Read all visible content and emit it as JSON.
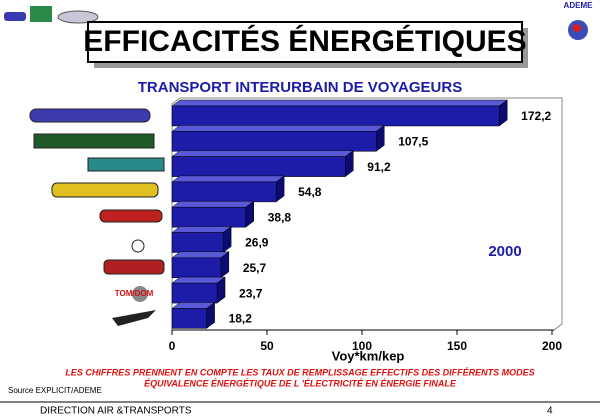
{
  "chart_data": {
    "type": "bar",
    "orientation": "horizontal",
    "title": "EFFICACITÉS ÉNERGÉTIQUES",
    "subtitle": "TRANSPORT INTERURBAIN DE VOYAGEURS",
    "categories": [
      null,
      null,
      null,
      null,
      null,
      null,
      null,
      null,
      null
    ],
    "values": [
      172.2,
      107.5,
      91.2,
      54.8,
      38.8,
      26.9,
      25.7,
      23.7,
      18.2
    ],
    "value_labels": [
      "172,2",
      "107,5",
      "91,2",
      "54,8",
      "38,8",
      "26,9",
      "25,7",
      "23,7",
      "18,2"
    ],
    "color": "#1c1ca8",
    "xlim": [
      0,
      200
    ],
    "xticks": [
      0,
      50,
      100,
      150,
      200
    ],
    "xlabel": "Voy*km/kep",
    "annotations": [
      "2000",
      "TOM/DOM"
    ],
    "footnotes": [
      "LES CHIFFRES PRENNENT EN COMPTE LES TAUX DE REMPLISSAGE EFFECTIFS DES DIFFÉRENTS MODES",
      "ÉQUIVALENCE ÉNERGÉTIQUE DE L 'ÉLECTRICITÉ EN  ÉNERGIE FINALE"
    ],
    "source": "Source EXPLICIT/ADEME",
    "logo": "ADEME",
    "footer": "DIRECTION AIR &TRANSPORTS",
    "page_number": "4"
  }
}
